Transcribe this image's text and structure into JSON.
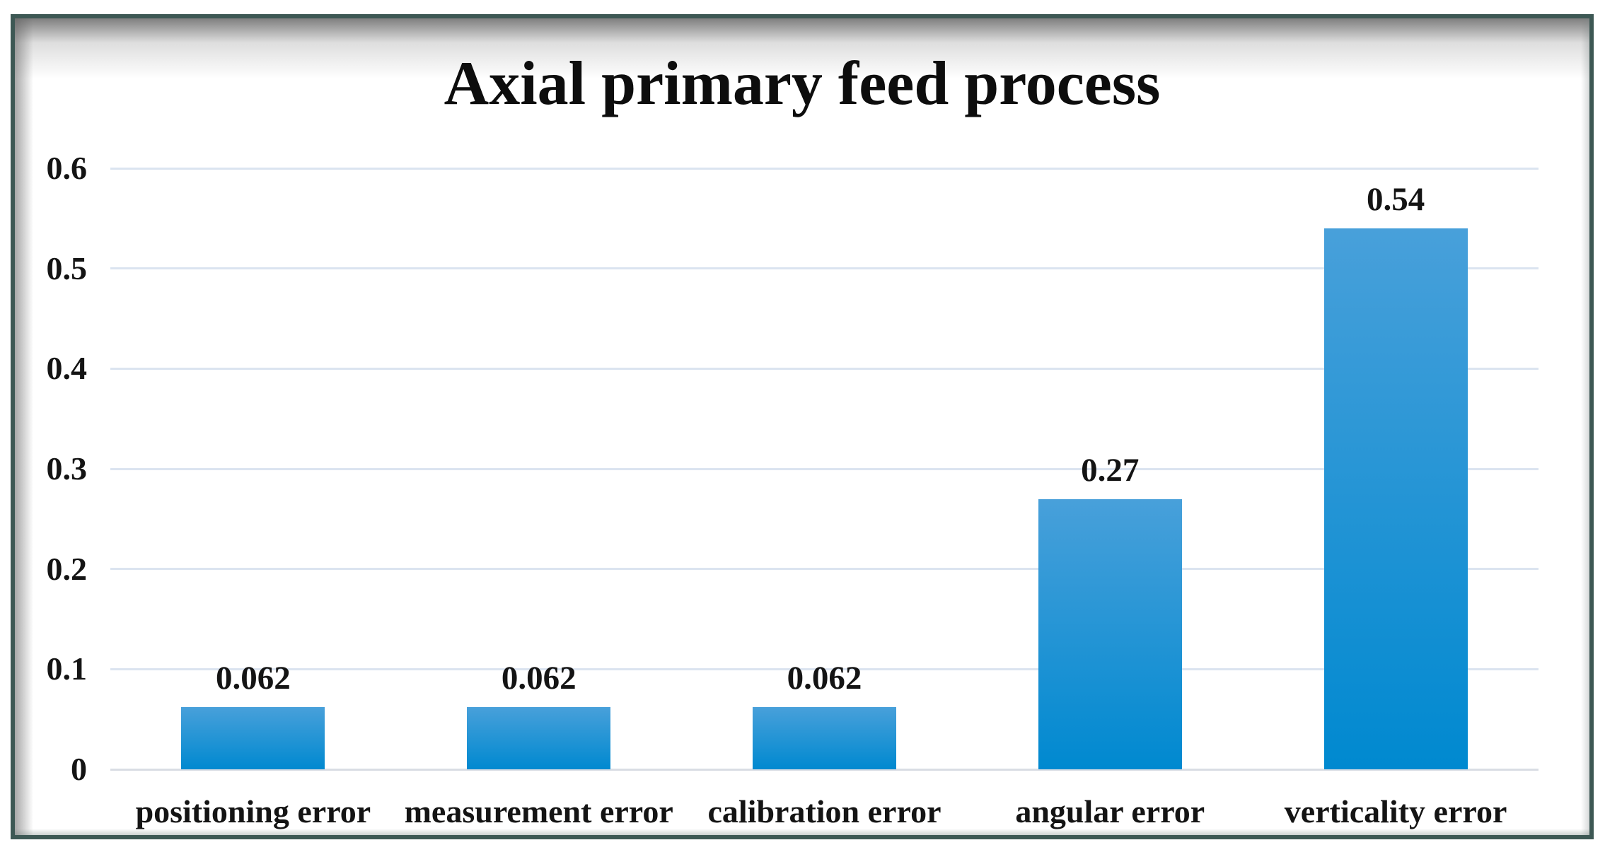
{
  "figure": {
    "title": "Axial primary feed process"
  },
  "chart_data": {
    "type": "bar",
    "title": "Axial primary feed process",
    "categories": [
      "positioning error",
      "measurement error",
      "calibration error",
      "angular error",
      "verticality error"
    ],
    "values": [
      0.062,
      0.062,
      0.062,
      0.27,
      0.54
    ],
    "data_labels": [
      "0.062",
      "0.062",
      "0.062",
      "0.27",
      "0.54"
    ],
    "xlabel": "",
    "ylabel": "",
    "ylim": [
      0,
      0.6
    ],
    "yticks": [
      0,
      0.1,
      0.2,
      0.3,
      0.4,
      0.5,
      0.6
    ],
    "ytick_labels": [
      "0",
      "0.1",
      "0.2",
      "0.3",
      "0.4",
      "0.5",
      "0.6"
    ],
    "grid": true,
    "legend": false
  },
  "colors": {
    "bar_gradient_top": "#48a0da",
    "bar_gradient_bottom": "#0089d0",
    "gridline": "#dbe4f0",
    "axis_line": "#d9dde4",
    "frame_border": "#3d5854",
    "text": "#141414",
    "background": "#ffffff"
  }
}
